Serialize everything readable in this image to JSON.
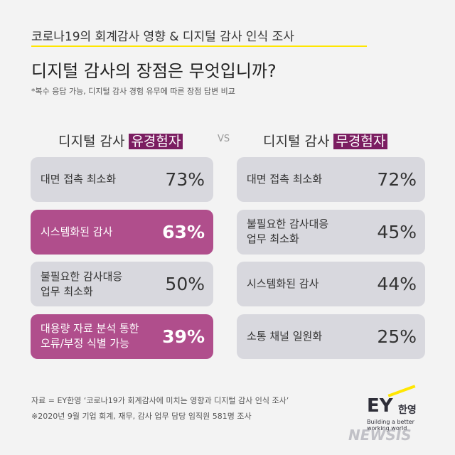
{
  "header": {
    "topic": "코로나19의 회계감사 영향 & 디지털 감사 인식 조사",
    "title": "디지털 감사의 장점은 무엇입니까?",
    "note": "*복수 응답 가능, 디지털 감사 경험 유무에 따른 장점 답변 비교"
  },
  "vs": "VS",
  "groups": [
    {
      "label": "디지털 감사",
      "tag": "유경험자",
      "items": [
        {
          "lines": [
            "대면 접촉 최소화"
          ],
          "value": "73%",
          "highlight": false
        },
        {
          "lines": [
            "시스템화된 감사"
          ],
          "value": "63%",
          "highlight": true
        },
        {
          "lines": [
            "불필요한 감사대응",
            "업무 최소화"
          ],
          "value": "50%",
          "highlight": false
        },
        {
          "lines": [
            "대용량 자료 분석 통한",
            "오류/부정 식별 가능"
          ],
          "value": "39%",
          "highlight": true
        }
      ]
    },
    {
      "label": "디지털 감사",
      "tag": "무경험자",
      "items": [
        {
          "lines": [
            "대면 접촉 최소화"
          ],
          "value": "72%",
          "highlight": false
        },
        {
          "lines": [
            "불필요한 감사대응",
            "업무 최소화"
          ],
          "value": "45%",
          "highlight": false
        },
        {
          "lines": [
            "시스템화된 감사"
          ],
          "value": "44%",
          "highlight": false
        },
        {
          "lines": [
            "소통 채널 일원화"
          ],
          "value": "25%",
          "highlight": false
        }
      ]
    }
  ],
  "footer": {
    "source": "자료 = EY한영 ‘코로나19가 회계감사에 미치는 영향과 디지털 감사 인식 조사’",
    "survey": "※2020년 9월 기업 회계, 재무, 감사 업무 담당 임직원 581명 조사"
  },
  "logo": {
    "mark": "EY",
    "name": "한영",
    "tagline": "Building a better working world"
  },
  "watermark": "NEWSIS"
}
